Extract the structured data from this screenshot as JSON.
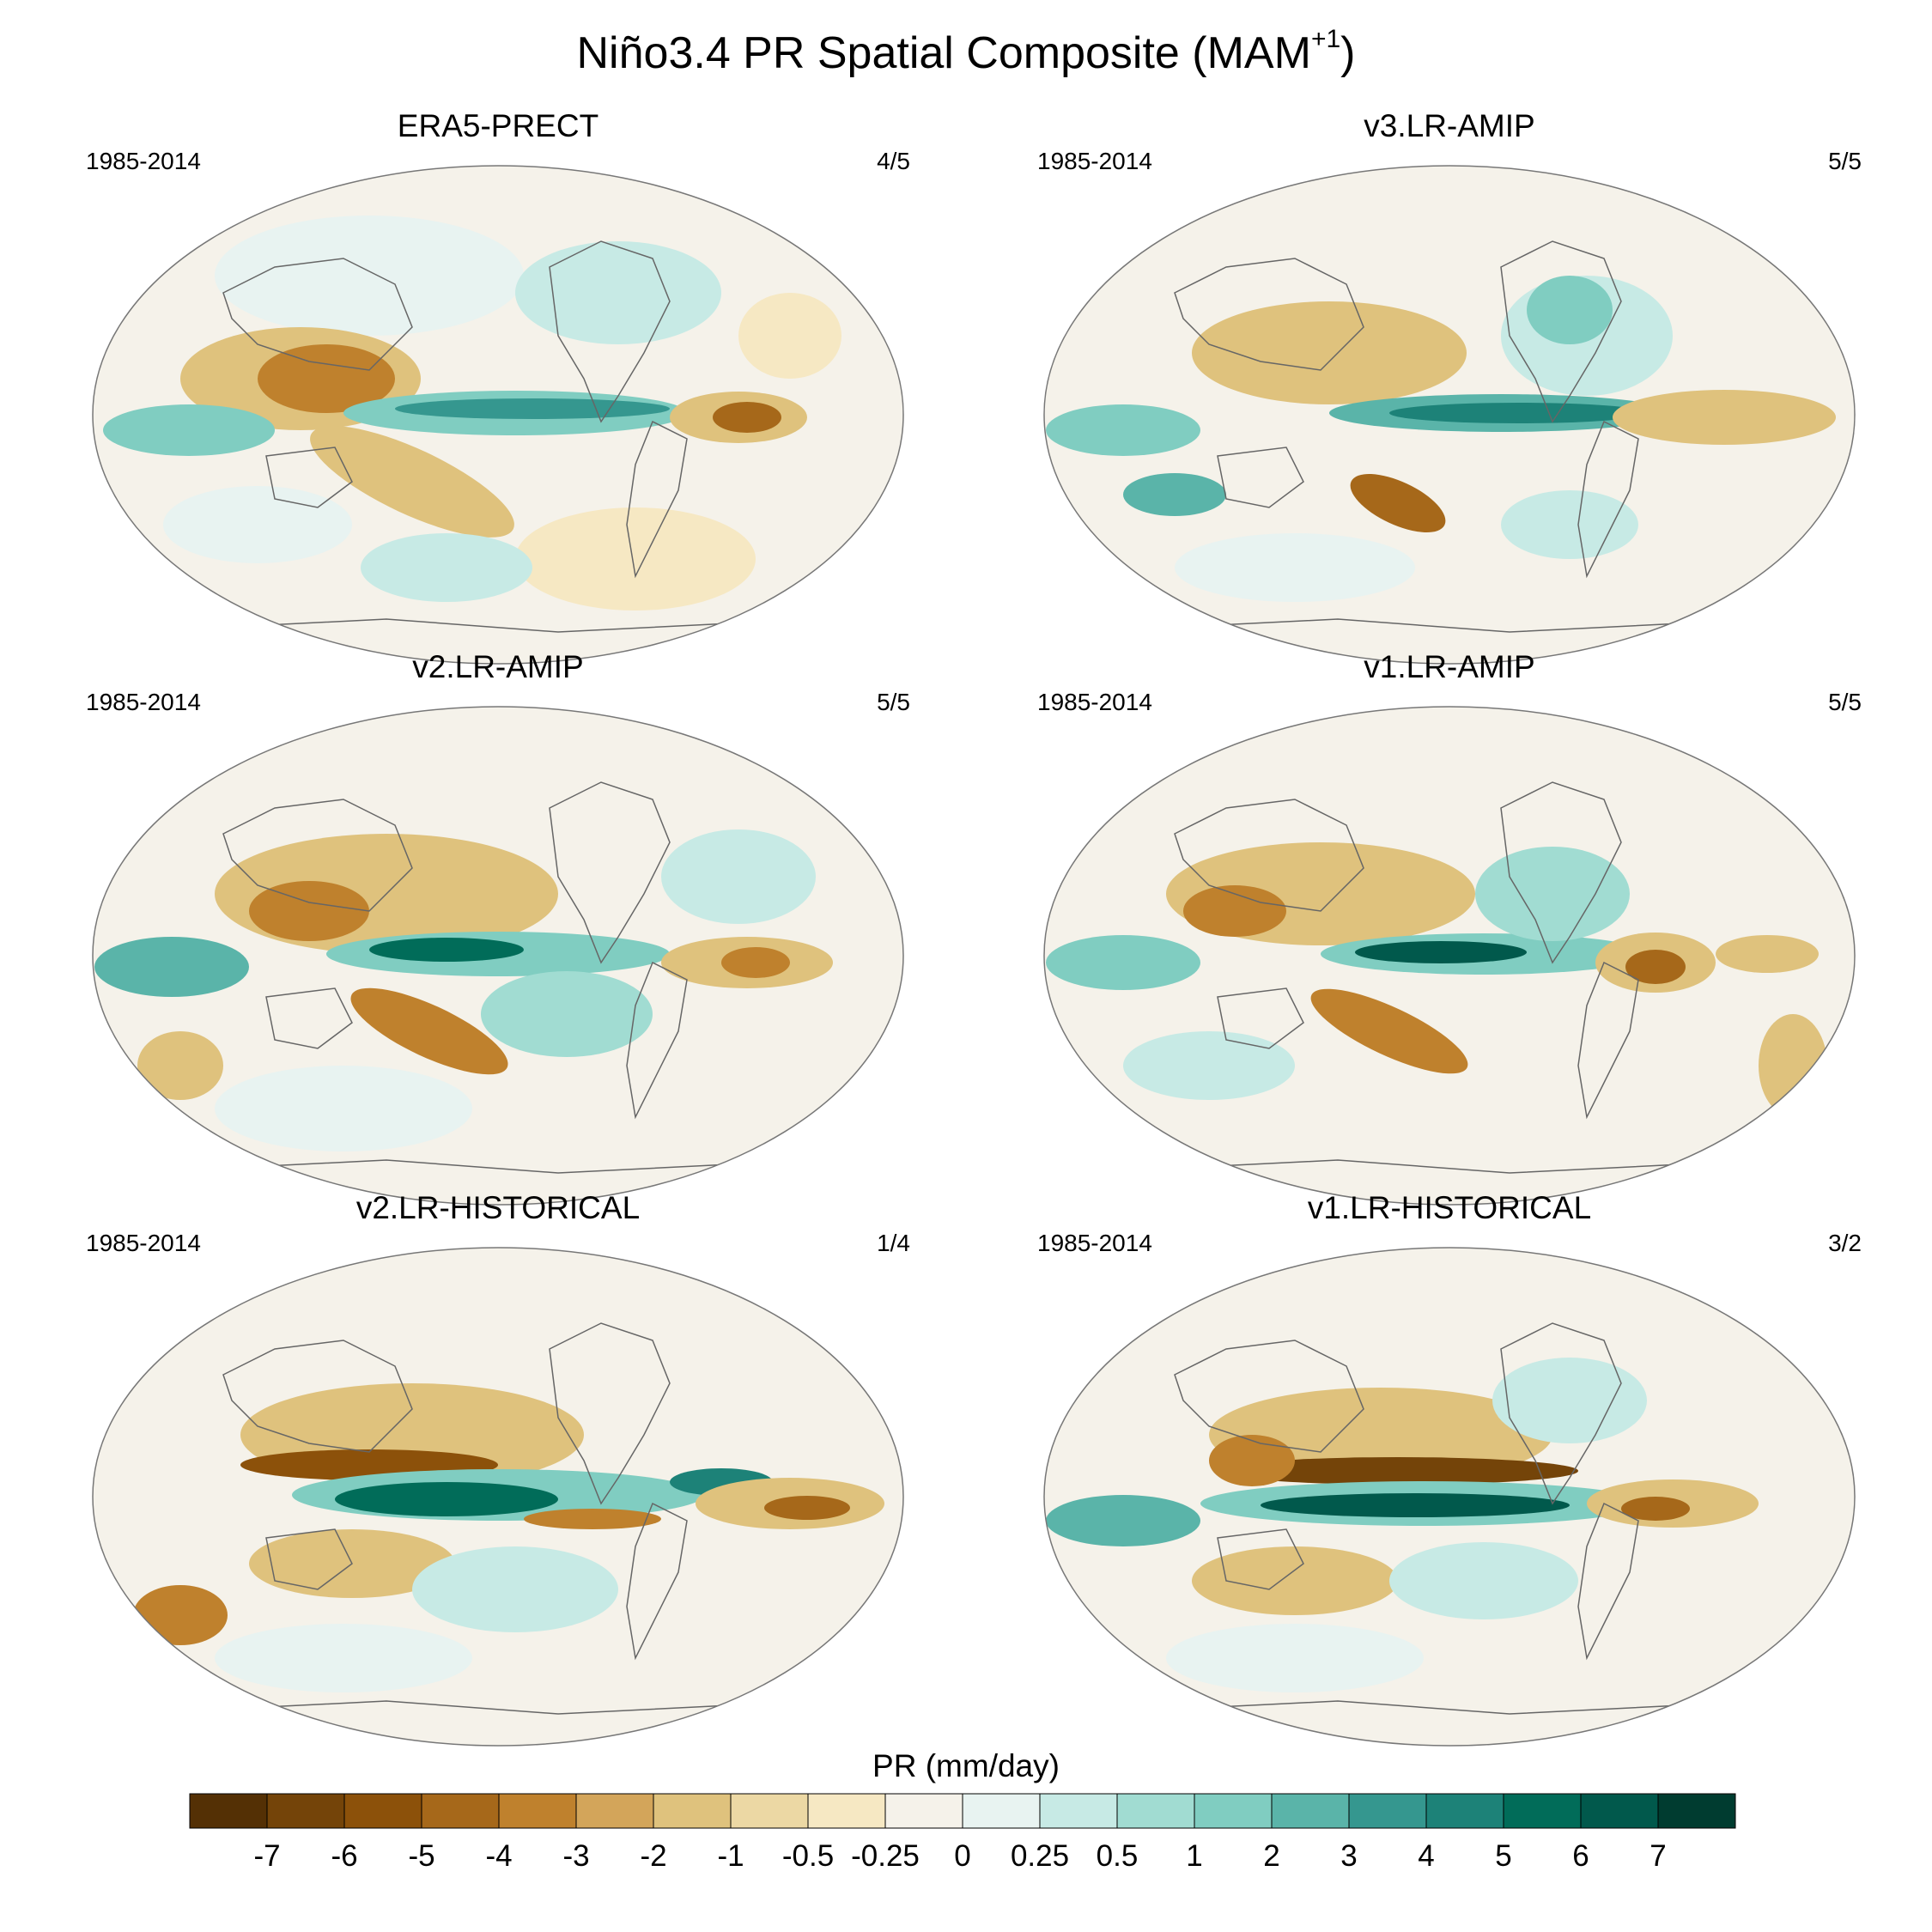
{
  "title": {
    "main": "Niño3.4 PR Spatial Composite (MAM",
    "superscript": "+1",
    "close": ")"
  },
  "colorbar": {
    "title": "PR (mm/day)",
    "labels": [
      "-7",
      "-6",
      "-5",
      "-4",
      "-3",
      "-2",
      "-1",
      "-0.5",
      "-0.25",
      "0",
      "0.25",
      "0.5",
      "1",
      "2",
      "3",
      "4",
      "5",
      "6",
      "7"
    ],
    "colors": [
      "#543005",
      "#744409",
      "#8c510a",
      "#a6681a",
      "#bf812d",
      "#d3a55a",
      "#dfc27d",
      "#ecd8a4",
      "#f6e8c3",
      "#f5f2ea",
      "#e8f3f1",
      "#c7eae5",
      "#a1dcd2",
      "#80cdc1",
      "#5ab4a9",
      "#35978f",
      "#1d8278",
      "#016c59",
      "#01594c",
      "#003c30"
    ]
  },
  "panels": [
    {
      "title": "ERA5-PRECT",
      "period": "1985-2014",
      "ratio": "4/5"
    },
    {
      "title": "v3.LR-AMIP",
      "period": "1985-2014",
      "ratio": "5/5"
    },
    {
      "title": "v2.LR-AMIP",
      "period": "1985-2014",
      "ratio": "5/5"
    },
    {
      "title": "v1.LR-AMIP",
      "period": "1985-2014",
      "ratio": "5/5"
    },
    {
      "title": "v2.LR-HISTORICAL",
      "period": "1985-2014",
      "ratio": "1/4"
    },
    {
      "title": "v1.LR-HISTORICAL",
      "period": "1985-2014",
      "ratio": "3/2"
    }
  ]
}
